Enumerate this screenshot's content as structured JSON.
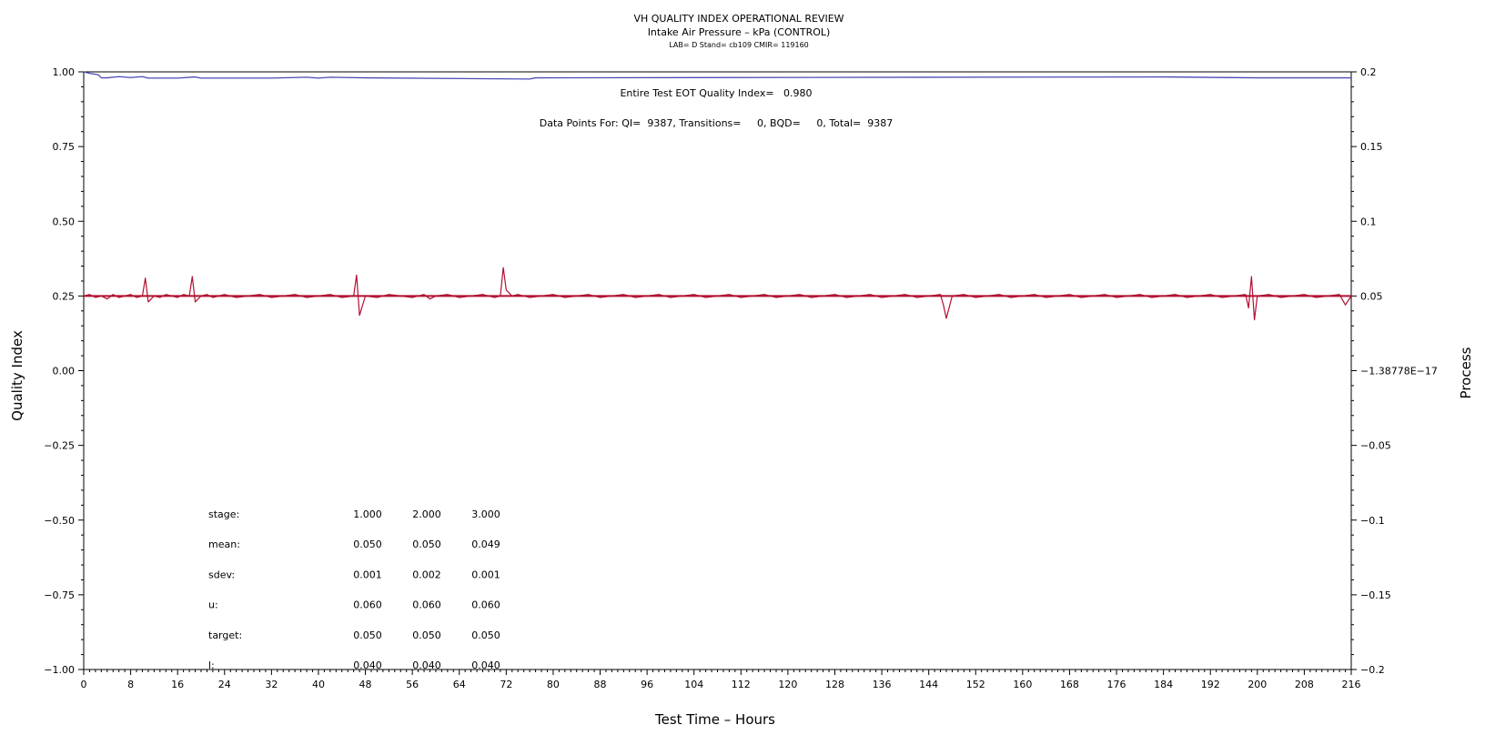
{
  "chart_data": {
    "type": "line",
    "title": "VH QUALITY INDEX OPERATIONAL REVIEW",
    "subtitle": "Intake Air Pressure – kPa (CONTROL)",
    "info_line": "LAB= D Stand= cb109 CMIR= 119160",
    "xlabel": "Test Time – Hours",
    "ylabel_left": "Quality Index",
    "ylabel_right": "Process",
    "xlim": [
      0,
      216
    ],
    "ylim_left": [
      -1.0,
      1.0
    ],
    "ylim_right": [
      -0.2,
      0.2
    ],
    "x_ticks": [
      "0",
      "8",
      "16",
      "24",
      "32",
      "40",
      "48",
      "56",
      "64",
      "72",
      "80",
      "88",
      "96",
      "104",
      "112",
      "120",
      "128",
      "136",
      "144",
      "152",
      "160",
      "168",
      "176",
      "184",
      "192",
      "200",
      "208",
      "216"
    ],
    "y_left_ticks": [
      "1.00",
      "0.75",
      "0.50",
      "0.25",
      "0.00",
      "−0.25",
      "−0.50",
      "−0.75",
      "−1.00"
    ],
    "y_right_ticks": [
      "0.2",
      "0.15",
      "0.1",
      "0.05",
      "−1.38778E−17",
      "−0.05",
      "−0.1",
      "−0.15",
      "−0.2"
    ],
    "annotation_eot": "Entire Test EOT Quality Index=   0.980",
    "annotation_points": "Data Points For: QI=  9387, Transitions=     0, BQD=     0, Total=  9387",
    "stats": {
      "rows": [
        {
          "label": "stage:",
          "values": [
            "1.000",
            "2.000",
            "3.000"
          ]
        },
        {
          "label": "mean:",
          "values": [
            "0.050",
            "0.050",
            "0.049"
          ]
        },
        {
          "label": "sdev:",
          "values": [
            "0.001",
            "0.002",
            "0.001"
          ]
        },
        {
          "label": "u:",
          "values": [
            "0.060",
            "0.060",
            "0.060"
          ]
        },
        {
          "label": "target:",
          "values": [
            "0.050",
            "0.050",
            "0.050"
          ]
        },
        {
          "label": "l:",
          "values": [
            "0.040",
            "0.040",
            "0.040"
          ]
        }
      ]
    },
    "series": [
      {
        "name": "Quality Index",
        "axis": "left",
        "color": "#4b4bb4",
        "x": [
          0,
          1,
          2,
          2.5,
          3,
          4,
          6,
          8,
          10,
          11,
          16,
          19,
          20,
          32,
          38,
          40,
          42,
          48,
          76,
          77,
          184,
          200,
          216
        ],
        "y": [
          1.0,
          0.995,
          0.992,
          0.99,
          0.98,
          0.98,
          0.984,
          0.981,
          0.984,
          0.979,
          0.979,
          0.983,
          0.979,
          0.979,
          0.982,
          0.979,
          0.982,
          0.98,
          0.976,
          0.98,
          0.983,
          0.98,
          0.98
        ]
      },
      {
        "name": "Process",
        "axis": "right",
        "color": "#b01030",
        "baseline": 0.05,
        "x": [
          0,
          1,
          2,
          3,
          4,
          5,
          6,
          7,
          8,
          9,
          10,
          10.5,
          11,
          12,
          13,
          14,
          15,
          16,
          17,
          18,
          18.5,
          19,
          20,
          21,
          22,
          23,
          24,
          26,
          28,
          30,
          32,
          34,
          36,
          38,
          40,
          42,
          44,
          46,
          46.5,
          47,
          48,
          50,
          52,
          54,
          56,
          58,
          59,
          60,
          62,
          64,
          66,
          68,
          70,
          71,
          71.5,
          72,
          73,
          74,
          76,
          78,
          80,
          82,
          84,
          86,
          88,
          90,
          92,
          94,
          96,
          98,
          100,
          102,
          104,
          106,
          108,
          110,
          112,
          114,
          116,
          118,
          120,
          122,
          124,
          126,
          128,
          130,
          132,
          134,
          136,
          138,
          140,
          142,
          144,
          146,
          146.5,
          147,
          148,
          150,
          152,
          154,
          156,
          158,
          160,
          162,
          164,
          166,
          168,
          170,
          172,
          174,
          176,
          178,
          180,
          182,
          184,
          186,
          188,
          190,
          192,
          194,
          196,
          198,
          198.5,
          199,
          199.5,
          200,
          202,
          204,
          206,
          208,
          210,
          212,
          214,
          215,
          216
        ],
        "y": [
          0.05,
          0.051,
          0.049,
          0.05,
          0.048,
          0.051,
          0.049,
          0.05,
          0.051,
          0.049,
          0.05,
          0.062,
          0.046,
          0.05,
          0.049,
          0.051,
          0.05,
          0.049,
          0.051,
          0.05,
          0.063,
          0.046,
          0.05,
          0.051,
          0.049,
          0.05,
          0.051,
          0.049,
          0.05,
          0.051,
          0.049,
          0.05,
          0.051,
          0.049,
          0.05,
          0.051,
          0.049,
          0.05,
          0.064,
          0.037,
          0.05,
          0.049,
          0.051,
          0.05,
          0.049,
          0.051,
          0.048,
          0.05,
          0.051,
          0.049,
          0.05,
          0.051,
          0.049,
          0.05,
          0.069,
          0.054,
          0.05,
          0.051,
          0.049,
          0.05,
          0.051,
          0.049,
          0.05,
          0.051,
          0.049,
          0.05,
          0.051,
          0.049,
          0.05,
          0.051,
          0.049,
          0.05,
          0.051,
          0.049,
          0.05,
          0.051,
          0.049,
          0.05,
          0.051,
          0.049,
          0.05,
          0.051,
          0.049,
          0.05,
          0.051,
          0.049,
          0.05,
          0.051,
          0.049,
          0.05,
          0.051,
          0.049,
          0.05,
          0.051,
          0.044,
          0.035,
          0.05,
          0.051,
          0.049,
          0.05,
          0.051,
          0.049,
          0.05,
          0.051,
          0.049,
          0.05,
          0.051,
          0.049,
          0.05,
          0.051,
          0.049,
          0.05,
          0.051,
          0.049,
          0.05,
          0.051,
          0.049,
          0.05,
          0.051,
          0.049,
          0.05,
          0.051,
          0.042,
          0.063,
          0.034,
          0.05,
          0.051,
          0.049,
          0.05,
          0.051,
          0.049,
          0.05,
          0.051,
          0.044,
          0.05
        ]
      }
    ]
  }
}
